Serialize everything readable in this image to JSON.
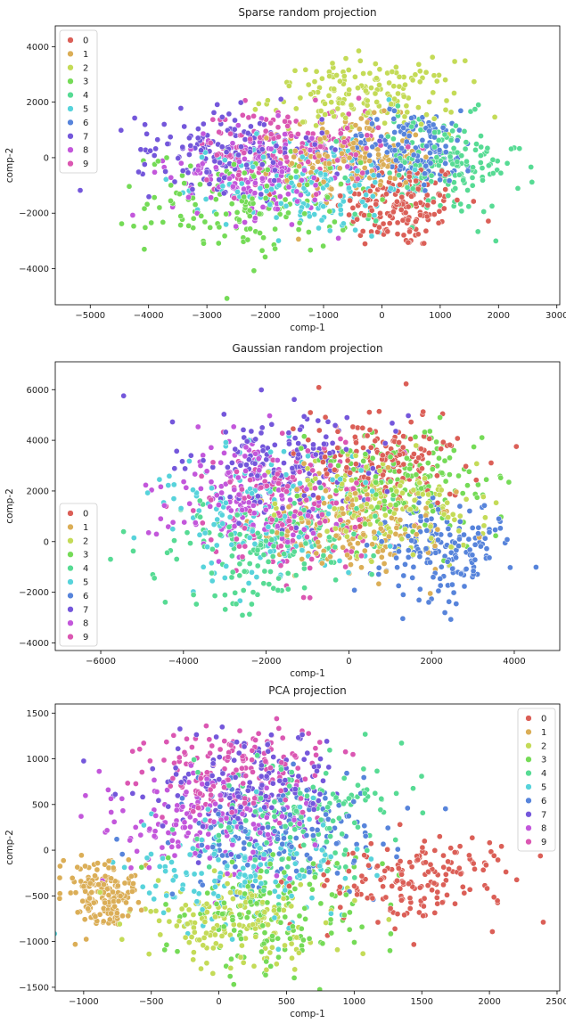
{
  "palette": [
    "#db5f57",
    "#dbae57",
    "#c4db57",
    "#75db57",
    "#57db94",
    "#57d3db",
    "#5784db",
    "#7457db",
    "#c357db",
    "#db57b2"
  ],
  "chart_data": [
    {
      "type": "scatter",
      "title": "Sparse random projection",
      "xlabel": "comp-1",
      "ylabel": "comp-2",
      "xlim": [
        -5600,
        3050
      ],
      "ylim": [
        -5300,
        4750
      ],
      "xticks": [
        -5000,
        -4000,
        -3000,
        -2000,
        -1000,
        0,
        1000,
        2000,
        3000
      ],
      "yticks": [
        -4000,
        -2000,
        0,
        2000,
        4000
      ],
      "grid": false,
      "legend_position": "top-left",
      "legend": [
        "0",
        "1",
        "2",
        "3",
        "4",
        "5",
        "6",
        "7",
        "8",
        "9"
      ],
      "clusters": [
        {
          "label": "0",
          "cx": 300,
          "cy": -1700,
          "sx": 550,
          "sy": 800
        },
        {
          "label": "1",
          "cx": -500,
          "cy": 0,
          "sx": 600,
          "sy": 700
        },
        {
          "label": "2",
          "cx": -300,
          "cy": 2200,
          "sx": 800,
          "sy": 650
        },
        {
          "label": "3",
          "cx": -2200,
          "cy": -1600,
          "sx": 900,
          "sy": 900
        },
        {
          "label": "4",
          "cx": 1000,
          "cy": -300,
          "sx": 700,
          "sy": 900
        },
        {
          "label": "5",
          "cx": -1200,
          "cy": -1000,
          "sx": 800,
          "sy": 900
        },
        {
          "label": "6",
          "cx": 500,
          "cy": 300,
          "sx": 600,
          "sy": 700
        },
        {
          "label": "7",
          "cx": -2600,
          "cy": 300,
          "sx": 800,
          "sy": 700
        },
        {
          "label": "8",
          "cx": -2200,
          "cy": -600,
          "sx": 700,
          "sy": 800
        },
        {
          "label": "9",
          "cx": -1600,
          "cy": 400,
          "sx": 800,
          "sy": 700
        }
      ]
    },
    {
      "type": "scatter",
      "title": "Gaussian random projection",
      "xlabel": "comp-1",
      "ylabel": "comp-2",
      "xlim": [
        -7100,
        5100
      ],
      "ylim": [
        -4300,
        7100
      ],
      "xticks": [
        -6000,
        -4000,
        -2000,
        0,
        2000,
        4000
      ],
      "yticks": [
        -4000,
        -2000,
        0,
        2000,
        4000,
        6000
      ],
      "grid": false,
      "legend_position": "lower-left",
      "legend": [
        "0",
        "1",
        "2",
        "3",
        "4",
        "5",
        "6",
        "7",
        "8",
        "9"
      ],
      "clusters": [
        {
          "label": "0",
          "cx": 800,
          "cy": 3300,
          "sx": 1000,
          "sy": 900
        },
        {
          "label": "1",
          "cx": 0,
          "cy": 500,
          "sx": 1000,
          "sy": 900
        },
        {
          "label": "2",
          "cx": 1000,
          "cy": 1500,
          "sx": 1100,
          "sy": 1000
        },
        {
          "label": "3",
          "cx": 1300,
          "cy": 2400,
          "sx": 1100,
          "sy": 1100
        },
        {
          "label": "4",
          "cx": -1800,
          "cy": -300,
          "sx": 1200,
          "sy": 1000
        },
        {
          "label": "5",
          "cx": -2200,
          "cy": 1000,
          "sx": 1300,
          "sy": 1400
        },
        {
          "label": "6",
          "cx": 2200,
          "cy": -300,
          "sx": 800,
          "sy": 900
        },
        {
          "label": "7",
          "cx": -1500,
          "cy": 3200,
          "sx": 1200,
          "sy": 1100
        },
        {
          "label": "8",
          "cx": -2400,
          "cy": 1800,
          "sx": 1100,
          "sy": 1200
        },
        {
          "label": "9",
          "cx": -1300,
          "cy": 1300,
          "sx": 1000,
          "sy": 1200
        }
      ]
    },
    {
      "type": "scatter",
      "title": "PCA projection",
      "xlabel": "comp-1",
      "ylabel": "comp-2",
      "xlim": [
        -1210,
        2520
      ],
      "ylim": [
        -1540,
        1600
      ],
      "xticks": [
        -1000,
        -500,
        0,
        500,
        1000,
        1500,
        2000,
        2500
      ],
      "yticks": [
        -1500,
        -1000,
        -500,
        0,
        500,
        1000,
        1500
      ],
      "grid": false,
      "legend_position": "top-right",
      "legend": [
        "0",
        "1",
        "2",
        "3",
        "4",
        "5",
        "6",
        "7",
        "8",
        "9"
      ],
      "clusters": [
        {
          "label": "0",
          "cx": 1500,
          "cy": -300,
          "sx": 350,
          "sy": 250
        },
        {
          "label": "1",
          "cx": -850,
          "cy": -500,
          "sx": 120,
          "sy": 180
        },
        {
          "label": "2",
          "cx": 100,
          "cy": -800,
          "sx": 350,
          "sy": 250
        },
        {
          "label": "3",
          "cx": 400,
          "cy": -650,
          "sx": 400,
          "sy": 300
        },
        {
          "label": "4",
          "cx": 600,
          "cy": 400,
          "sx": 400,
          "sy": 350
        },
        {
          "label": "5",
          "cx": 200,
          "cy": -250,
          "sx": 400,
          "sy": 300
        },
        {
          "label": "6",
          "cx": 500,
          "cy": 150,
          "sx": 400,
          "sy": 300
        },
        {
          "label": "7",
          "cx": 200,
          "cy": 700,
          "sx": 350,
          "sy": 300
        },
        {
          "label": "8",
          "cx": -100,
          "cy": 300,
          "sx": 400,
          "sy": 300
        },
        {
          "label": "9",
          "cx": 100,
          "cy": 850,
          "sx": 350,
          "sy": 250
        }
      ]
    }
  ]
}
